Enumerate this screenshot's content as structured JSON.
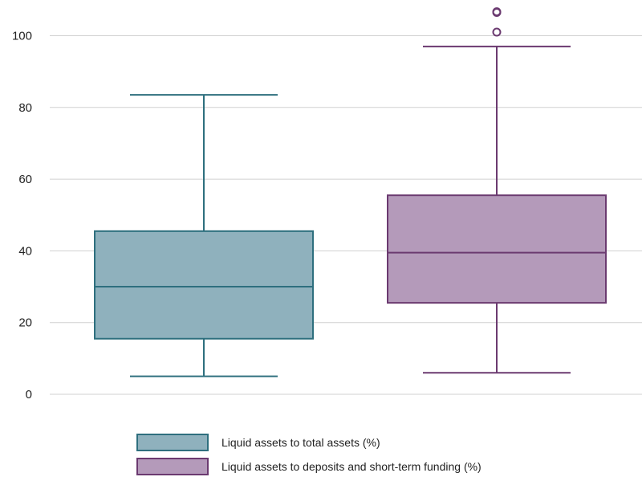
{
  "chart_data": {
    "type": "box",
    "title": "",
    "xlabel": "",
    "ylabel": "",
    "ylim": [
      0,
      100
    ],
    "yticks": [
      0,
      20,
      40,
      60,
      80,
      100
    ],
    "grid": true,
    "legend_placement": "bottom",
    "series": [
      {
        "name": "Liquid assets to total assets (%)",
        "color": "#8fb1bd",
        "edge_color": "#2e6f7e",
        "whisker_low": 5,
        "q1": 15.5,
        "median": 30,
        "q3": 45.5,
        "whisker_high": 83.5,
        "outliers": []
      },
      {
        "name": "Liquid assets to deposits and short-term funding (%)",
        "color": "#b49aba",
        "edge_color": "#6b3a70",
        "whisker_low": 6,
        "q1": 25.5,
        "median": 39.5,
        "q3": 55.5,
        "whisker_high": 97,
        "outliers": [
          101,
          106.5,
          106.7
        ]
      }
    ]
  }
}
